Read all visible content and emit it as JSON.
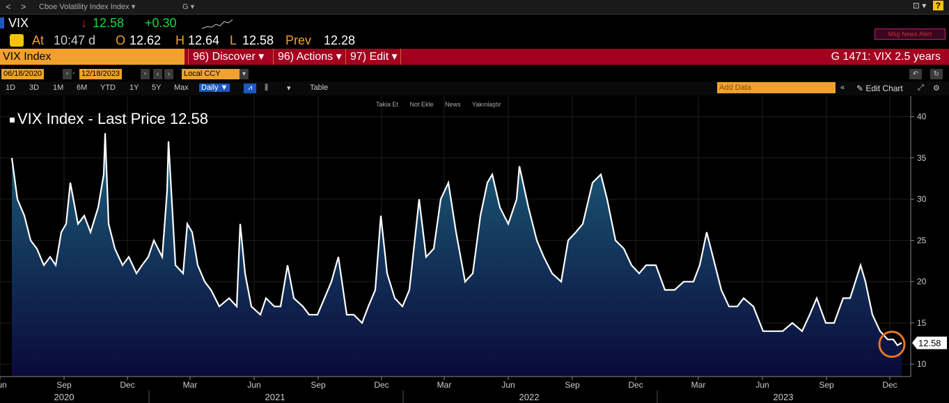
{
  "window": {
    "title": "Cboe Volatility Index Index ▾",
    "group": "G ▾",
    "back": "<",
    "forward": ">",
    "right_icons": "⊡ ▾",
    "help": "?"
  },
  "ticker": {
    "symbol": "VIX",
    "arrow": "↓",
    "last": "12.58",
    "change": "+0.30",
    "at_label": "At",
    "time": "10:47 d",
    "open_label": "O",
    "open": "12.62",
    "high_label": "H",
    "high": "12.64",
    "low_label": "L",
    "low": "12.58",
    "prev_label": "Prev",
    "prev": "12.28",
    "alert": "Msg News Alert"
  },
  "function_bar": {
    "security": "VIX Index",
    "menus": [
      "96) Discover ▾",
      "96) Actions ▾",
      "97) Edit ▾"
    ],
    "page_title": "G 1471: VIX 2.5 years"
  },
  "date_range": {
    "start": "06/18/2020",
    "end": "12/18/2023",
    "currency": "Local CCY"
  },
  "ranges": {
    "items": [
      "1D",
      "3D",
      "1M",
      "6M",
      "YTD",
      "1Y",
      "5Y",
      "Max"
    ],
    "frequency": "Daily ▼",
    "table": "Table",
    "add_data": "Add Data",
    "edit_chart": "Edit Chart"
  },
  "annotations": [
    "Takia Et",
    "Not Ekle",
    "News",
    "Yakınlaştır"
  ],
  "chart_data": {
    "type": "area",
    "title": "VIX Index - Last Price",
    "last_value_label": "12.58",
    "series": [
      {
        "name": "VIX Index - Last Price",
        "x": [
          "2020-06-18",
          "2020-06-26",
          "2020-07-06",
          "2020-07-15",
          "2020-07-24",
          "2020-08-03",
          "2020-08-12",
          "2020-08-20",
          "2020-08-28",
          "2020-09-04",
          "2020-09-10",
          "2020-09-21",
          "2020-09-30",
          "2020-10-09",
          "2020-10-20",
          "2020-10-28",
          "2020-10-30",
          "2020-11-04",
          "2020-11-13",
          "2020-11-24",
          "2020-12-03",
          "2020-12-14",
          "2020-12-22",
          "2020-12-31",
          "2021-01-08",
          "2021-01-20",
          "2021-01-27",
          "2021-01-29",
          "2021-02-08",
          "2021-02-19",
          "2021-02-25",
          "2021-03-04",
          "2021-03-12",
          "2021-03-22",
          "2021-03-31",
          "2021-04-12",
          "2021-04-26",
          "2021-05-07",
          "2021-05-12",
          "2021-05-19",
          "2021-05-28",
          "2021-06-10",
          "2021-06-18",
          "2021-06-30",
          "2021-07-09",
          "2021-07-19",
          "2021-07-28",
          "2021-08-10",
          "2021-08-19",
          "2021-08-31",
          "2021-09-10",
          "2021-09-20",
          "2021-09-30",
          "2021-10-12",
          "2021-10-22",
          "2021-11-03",
          "2021-11-12",
          "2021-11-22",
          "2021-11-30",
          "2021-12-09",
          "2021-12-20",
          "2021-12-31",
          "2022-01-10",
          "2022-01-24",
          "2022-02-03",
          "2022-02-14",
          "2022-02-24",
          "2022-03-07",
          "2022-03-18",
          "2022-03-31",
          "2022-04-11",
          "2022-04-22",
          "2022-05-02",
          "2022-05-09",
          "2022-05-20",
          "2022-06-01",
          "2022-06-13",
          "2022-06-17",
          "2022-06-30",
          "2022-07-12",
          "2022-07-22",
          "2022-08-03",
          "2022-08-16",
          "2022-08-26",
          "2022-09-06",
          "2022-09-16",
          "2022-09-30",
          "2022-10-12",
          "2022-10-21",
          "2022-11-02",
          "2022-11-14",
          "2022-11-25",
          "2022-12-06",
          "2022-12-16",
          "2022-12-30",
          "2023-01-12",
          "2023-01-26",
          "2023-02-08",
          "2023-02-22",
          "2023-03-03",
          "2023-03-13",
          "2023-03-22",
          "2023-04-03",
          "2023-04-14",
          "2023-04-26",
          "2023-05-05",
          "2023-05-19",
          "2023-06-02",
          "2023-06-16",
          "2023-06-30",
          "2023-07-14",
          "2023-07-28",
          "2023-08-08",
          "2023-08-18",
          "2023-08-31",
          "2023-09-12",
          "2023-09-25",
          "2023-10-05",
          "2023-10-20",
          "2023-10-27",
          "2023-11-06",
          "2023-11-17",
          "2023-11-28",
          "2023-12-06",
          "2023-12-12",
          "2023-12-18"
        ],
        "y": [
          35,
          30,
          28,
          25,
          24,
          22,
          23,
          22,
          26,
          27,
          32,
          27,
          28,
          26,
          29,
          33,
          38,
          27,
          24,
          22,
          23,
          21,
          22,
          23,
          25,
          23,
          31,
          37,
          22,
          21,
          27,
          26,
          22,
          20,
          19,
          17,
          18,
          17,
          27,
          21,
          17,
          16,
          18,
          17,
          17,
          22,
          18,
          17,
          16,
          16,
          18,
          20,
          23,
          16,
          16,
          15,
          17,
          19,
          28,
          21,
          18,
          17,
          19,
          30,
          23,
          24,
          30,
          32,
          26,
          20,
          21,
          28,
          32,
          33,
          29,
          27,
          30,
          34,
          29,
          25,
          23,
          21,
          20,
          25,
          26,
          27,
          32,
          33,
          30,
          25,
          24,
          22,
          21,
          22,
          22,
          19,
          19,
          20,
          20,
          22,
          26,
          23,
          19,
          17,
          17,
          18,
          17,
          14,
          14,
          14,
          15,
          14,
          16,
          18,
          15,
          15,
          18,
          18,
          22,
          20,
          16,
          14,
          13,
          13,
          12.3,
          12.58
        ]
      }
    ],
    "x_ticks": [
      "Jun",
      "Sep",
      "Dec",
      "Mar",
      "Jun",
      "Sep",
      "Dec",
      "Mar",
      "Jun",
      "Sep",
      "Dec",
      "Mar",
      "Jun",
      "Sep",
      "Dec"
    ],
    "x_years": [
      "2020",
      "2021",
      "2022",
      "2023"
    ],
    "y_ticks": [
      10,
      15,
      20,
      25,
      30,
      35,
      40
    ],
    "ylim": [
      8.5,
      42.5
    ],
    "colors": {
      "line": "#ffffff",
      "fill_top": "#1c5f7c",
      "fill_bottom": "#0a0a3a",
      "highlight": "#e87722"
    }
  }
}
